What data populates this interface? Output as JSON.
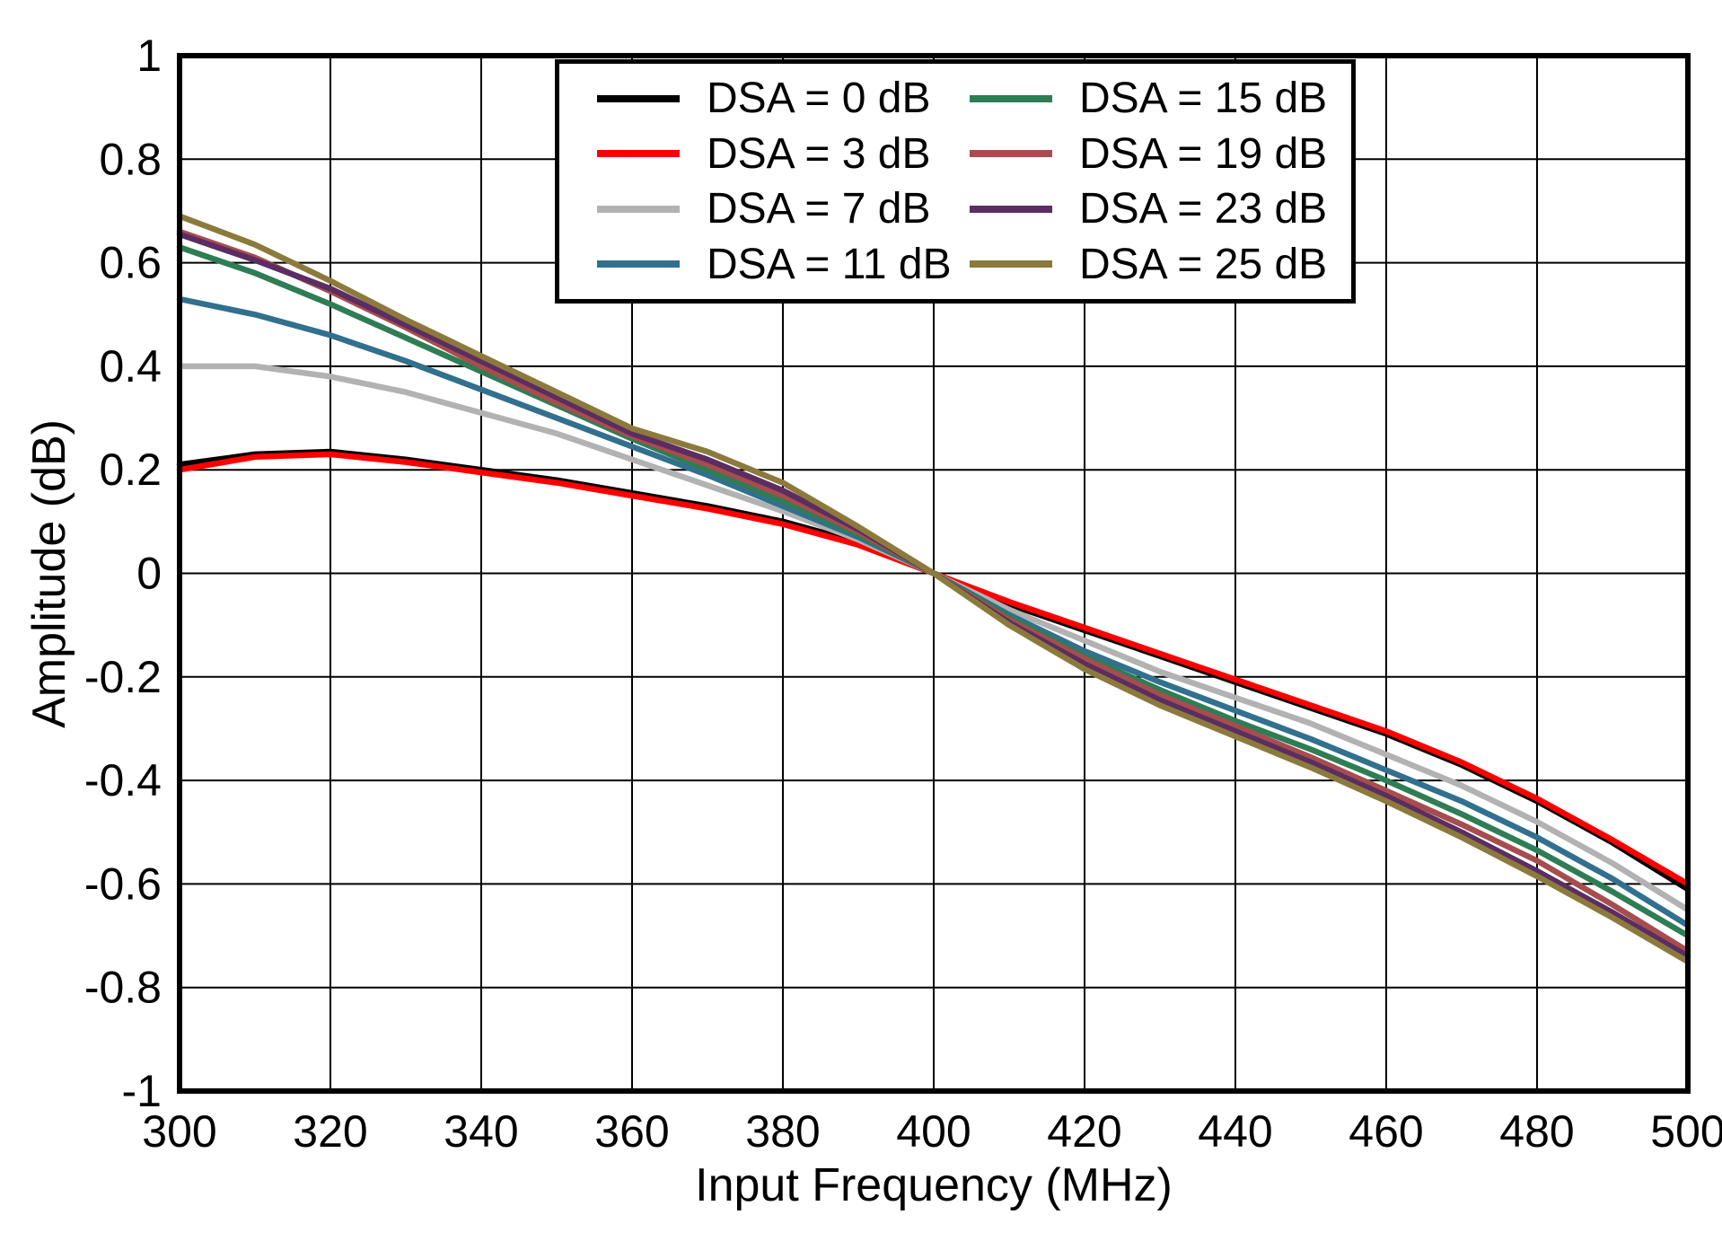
{
  "figure": {
    "background": "#ffffff",
    "plot_border_color": "#000000"
  },
  "chart_data": {
    "type": "line",
    "title": "",
    "xlabel": "Input Frequency (MHz)",
    "ylabel": "Amplitude (dB)",
    "xlim": [
      300,
      500
    ],
    "ylim": [
      -1,
      1
    ],
    "xticks": [
      300,
      320,
      340,
      360,
      380,
      400,
      420,
      440,
      460,
      480,
      500
    ],
    "xtick_labels": [
      "300",
      "320",
      "340",
      "360",
      "380",
      "400",
      "420",
      "440",
      "460",
      "480",
      "500"
    ],
    "yticks": [
      -1,
      -0.8,
      -0.6,
      -0.4,
      -0.2,
      0,
      0.2,
      0.4,
      0.6,
      0.8,
      1
    ],
    "ytick_labels": [
      "-1",
      "-0.8",
      "-0.6",
      "-0.4",
      "-0.2",
      "0",
      "0.2",
      "0.4",
      "0.6",
      "0.8",
      "1"
    ],
    "grid": true,
    "grid_color": "#000000",
    "legend_position": "top-center",
    "x": [
      300,
      310,
      320,
      330,
      340,
      350,
      360,
      370,
      380,
      390,
      400,
      410,
      420,
      430,
      440,
      450,
      460,
      470,
      480,
      490,
      500
    ],
    "series": [
      {
        "name": "DSA = 0 dB",
        "color": "#000000",
        "values": [
          0.21,
          0.23,
          0.235,
          0.22,
          0.2,
          0.18,
          0.155,
          0.13,
          0.1,
          0.06,
          0.0,
          -0.06,
          -0.11,
          -0.16,
          -0.21,
          -0.26,
          -0.31,
          -0.37,
          -0.44,
          -0.52,
          -0.61
        ]
      },
      {
        "name": "DSA = 3 dB",
        "color": "#ff0000",
        "values": [
          0.2,
          0.225,
          0.23,
          0.215,
          0.195,
          0.175,
          0.15,
          0.125,
          0.095,
          0.055,
          0.0,
          -0.055,
          -0.105,
          -0.155,
          -0.205,
          -0.255,
          -0.305,
          -0.365,
          -0.435,
          -0.515,
          -0.6
        ]
      },
      {
        "name": "DSA = 7 dB",
        "color": "#b2b2b2",
        "values": [
          0.4,
          0.4,
          0.38,
          0.35,
          0.31,
          0.27,
          0.22,
          0.17,
          0.12,
          0.065,
          0.0,
          -0.07,
          -0.13,
          -0.19,
          -0.24,
          -0.29,
          -0.35,
          -0.41,
          -0.48,
          -0.56,
          -0.65
        ]
      },
      {
        "name": "DSA = 11 dB",
        "color": "#31708e",
        "values": [
          0.53,
          0.5,
          0.46,
          0.41,
          0.355,
          0.3,
          0.245,
          0.19,
          0.13,
          0.07,
          0.0,
          -0.08,
          -0.15,
          -0.21,
          -0.265,
          -0.32,
          -0.38,
          -0.44,
          -0.51,
          -0.59,
          -0.68
        ]
      },
      {
        "name": "DSA = 15 dB",
        "color": "#2e7d54",
        "values": [
          0.63,
          0.58,
          0.52,
          0.455,
          0.39,
          0.325,
          0.26,
          0.2,
          0.14,
          0.075,
          0.0,
          -0.085,
          -0.16,
          -0.225,
          -0.285,
          -0.34,
          -0.4,
          -0.465,
          -0.535,
          -0.615,
          -0.7
        ]
      },
      {
        "name": "DSA = 19 dB",
        "color": "#a64d4d",
        "values": [
          0.66,
          0.61,
          0.545,
          0.475,
          0.4,
          0.33,
          0.265,
          0.21,
          0.15,
          0.08,
          0.0,
          -0.09,
          -0.165,
          -0.235,
          -0.295,
          -0.355,
          -0.42,
          -0.485,
          -0.555,
          -0.64,
          -0.73
        ]
      },
      {
        "name": "DSA = 23 dB",
        "color": "#5b2d62",
        "values": [
          0.655,
          0.605,
          0.55,
          0.48,
          0.41,
          0.34,
          0.27,
          0.22,
          0.16,
          0.085,
          0.0,
          -0.095,
          -0.175,
          -0.245,
          -0.305,
          -0.365,
          -0.43,
          -0.5,
          -0.575,
          -0.655,
          -0.74
        ]
      },
      {
        "name": "DSA = 25 dB",
        "color": "#8c7a3c",
        "values": [
          0.69,
          0.635,
          0.565,
          0.49,
          0.42,
          0.35,
          0.28,
          0.235,
          0.175,
          0.09,
          0.0,
          -0.1,
          -0.185,
          -0.255,
          -0.315,
          -0.375,
          -0.44,
          -0.51,
          -0.585,
          -0.665,
          -0.75
        ]
      }
    ]
  }
}
